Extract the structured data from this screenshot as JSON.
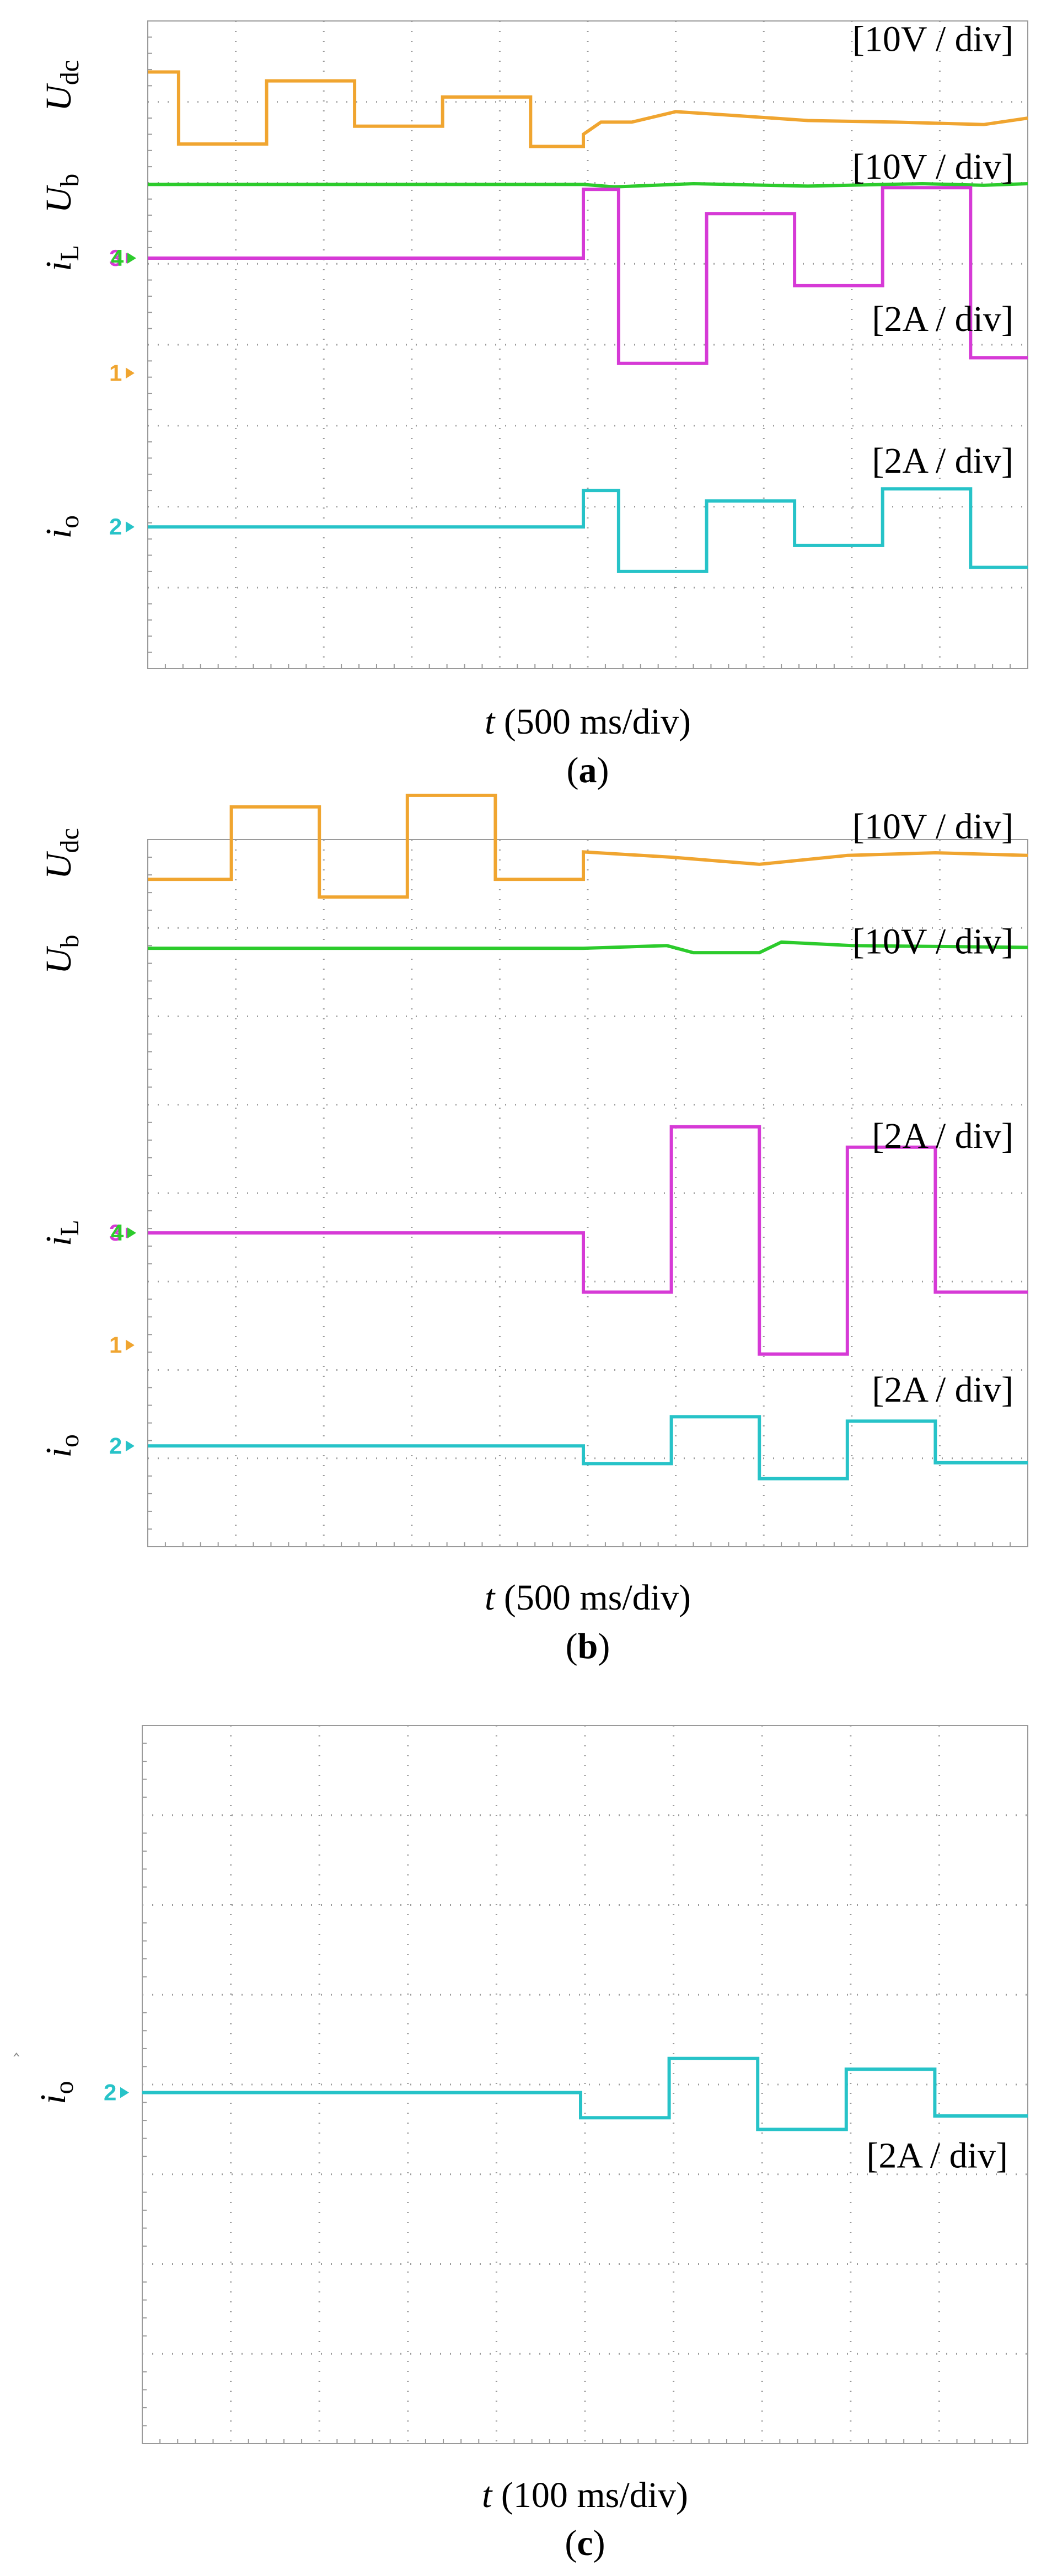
{
  "colors": {
    "u_dc": "#f0a530",
    "u_b": "#2ccb2c",
    "i_L": "#d63ad6",
    "i_o": "#27c3c8",
    "marker_4": "#2ccb2c",
    "marker_1": "#f0a530",
    "marker_3": "#d63ad6",
    "marker_2": "#27c3c8",
    "grid": "#9a9a9a",
    "text": "#000000"
  },
  "chart_data": [
    {
      "type": "line",
      "panel_label": "(a)",
      "caption_letter": "a",
      "x_axis_label": "t (500 ms/div)",
      "x_label_var": "t",
      "x_label_unit": "(500 ms/div)",
      "x_range": [
        0,
        10
      ],
      "y_range": [
        0,
        8
      ],
      "grid": true,
      "channel_markers": [
        {
          "label": "3",
          "color_key": "marker_3",
          "y": 5.07,
          "x_offset": 0
        },
        {
          "label": "4",
          "color_key": "marker_4",
          "y": 5.07,
          "x_offset": 3
        },
        {
          "label": "1",
          "color_key": "marker_1",
          "y": 3.65,
          "x_offset": 0
        },
        {
          "label": "2",
          "color_key": "marker_2",
          "y": 1.75,
          "x_offset": 0
        }
      ],
      "scale_labels": [
        {
          "text": "[10V / div]",
          "y": 7.78
        },
        {
          "text": "[10V / div]",
          "y": 6.2
        },
        {
          "text": "[2A / div]",
          "y": 4.32
        },
        {
          "text": "[2A / div]",
          "y": 2.57
        }
      ],
      "series": [
        {
          "name": "U_dc",
          "sym": "U",
          "sub": "dc",
          "label_y": 7.2,
          "color_key": "u_dc",
          "points": [
            [
              0,
              7.37
            ],
            [
              0.35,
              7.37
            ],
            [
              0.35,
              6.48
            ],
            [
              1.35,
              6.48
            ],
            [
              1.35,
              7.26
            ],
            [
              2.35,
              7.26
            ],
            [
              2.35,
              6.7
            ],
            [
              3.35,
              6.7
            ],
            [
              3.35,
              7.06
            ],
            [
              4.35,
              7.06
            ],
            [
              4.35,
              6.45
            ],
            [
              4.95,
              6.45
            ],
            [
              4.95,
              6.6
            ],
            [
              5.15,
              6.75
            ],
            [
              5.5,
              6.75
            ],
            [
              6.0,
              6.88
            ],
            [
              6.7,
              6.83
            ],
            [
              7.5,
              6.77
            ],
            [
              8.5,
              6.75
            ],
            [
              9.5,
              6.72
            ],
            [
              10,
              6.8
            ]
          ]
        },
        {
          "name": "U_b",
          "sym": "U",
          "sub": "b",
          "label_y": 5.87,
          "color_key": "u_b",
          "points": [
            [
              0,
              5.98
            ],
            [
              4.95,
              5.98
            ],
            [
              5.3,
              5.95
            ],
            [
              6.2,
              5.99
            ],
            [
              7.5,
              5.96
            ],
            [
              8.8,
              5.99
            ],
            [
              9.5,
              5.97
            ],
            [
              10,
              5.99
            ]
          ]
        },
        {
          "name": "i_L",
          "sym": "i",
          "sub": "L",
          "label_y": 5.07,
          "color_key": "i_L",
          "points": [
            [
              0,
              5.07
            ],
            [
              4.95,
              5.07
            ],
            [
              4.95,
              5.92
            ],
            [
              5.35,
              5.92
            ],
            [
              5.35,
              3.77
            ],
            [
              6.35,
              3.77
            ],
            [
              6.35,
              5.62
            ],
            [
              7.35,
              5.62
            ],
            [
              7.35,
              4.73
            ],
            [
              8.35,
              4.73
            ],
            [
              8.35,
              5.94
            ],
            [
              9.35,
              5.94
            ],
            [
              9.35,
              3.84
            ],
            [
              10,
              3.84
            ]
          ]
        },
        {
          "name": "i_o",
          "sym": "i",
          "sub": "o",
          "label_y": 1.75,
          "color_key": "i_o",
          "points": [
            [
              0,
              1.75
            ],
            [
              4.95,
              1.75
            ],
            [
              4.95,
              2.2
            ],
            [
              5.35,
              2.2
            ],
            [
              5.35,
              1.2
            ],
            [
              6.35,
              1.2
            ],
            [
              6.35,
              2.07
            ],
            [
              7.35,
              2.07
            ],
            [
              7.35,
              1.52
            ],
            [
              8.35,
              1.52
            ],
            [
              8.35,
              2.22
            ],
            [
              9.35,
              2.22
            ],
            [
              9.35,
              1.25
            ],
            [
              10,
              1.25
            ]
          ]
        }
      ]
    },
    {
      "type": "line",
      "panel_label": "(b)",
      "caption_letter": "b",
      "x_axis_label": "t (500 ms/div)",
      "x_label_var": "t",
      "x_label_unit": "(500 ms/div)",
      "x_range": [
        0,
        10
      ],
      "y_range": [
        0,
        8
      ],
      "grid": true,
      "channel_markers": [
        {
          "label": "3",
          "color_key": "marker_3",
          "y": 3.55,
          "x_offset": 0
        },
        {
          "label": "4",
          "color_key": "marker_4",
          "y": 3.55,
          "x_offset": 3
        },
        {
          "label": "1",
          "color_key": "marker_1",
          "y": 2.28,
          "x_offset": 0
        },
        {
          "label": "2",
          "color_key": "marker_2",
          "y": 1.14,
          "x_offset": 0
        }
      ],
      "scale_labels": [
        {
          "text": "[10V / div]",
          "y": 8.15
        },
        {
          "text": "[10V / div]",
          "y": 6.85
        },
        {
          "text": "[2A / div]",
          "y": 4.65
        },
        {
          "text": "[2A / div]",
          "y": 1.78
        }
      ],
      "series": [
        {
          "name": "U_dc",
          "sym": "U",
          "sub": "dc",
          "label_y": 7.84,
          "color_key": "u_dc",
          "points": [
            [
              0,
              7.55
            ],
            [
              0.95,
              7.55
            ],
            [
              0.95,
              8.37
            ],
            [
              1.95,
              8.37
            ],
            [
              1.95,
              7.35
            ],
            [
              2.95,
              7.35
            ],
            [
              2.95,
              8.5
            ],
            [
              3.95,
              8.5
            ],
            [
              3.95,
              7.55
            ],
            [
              4.95,
              7.55
            ],
            [
              4.95,
              7.86
            ],
            [
              5.95,
              7.8
            ],
            [
              6.95,
              7.72
            ],
            [
              7.95,
              7.82
            ],
            [
              8.95,
              7.85
            ],
            [
              10,
              7.82
            ]
          ]
        },
        {
          "name": "U_b",
          "sym": "U",
          "sub": "b",
          "label_y": 6.7,
          "color_key": "u_b",
          "points": [
            [
              0,
              6.77
            ],
            [
              4.95,
              6.77
            ],
            [
              5.9,
              6.8
            ],
            [
              6.2,
              6.72
            ],
            [
              6.95,
              6.72
            ],
            [
              7.2,
              6.84
            ],
            [
              8.0,
              6.8
            ],
            [
              10,
              6.78
            ]
          ]
        },
        {
          "name": "i_L",
          "sym": "i",
          "sub": "L",
          "label_y": 3.55,
          "color_key": "i_L",
          "points": [
            [
              0,
              3.55
            ],
            [
              4.95,
              3.55
            ],
            [
              4.95,
              2.88
            ],
            [
              5.95,
              2.88
            ],
            [
              5.95,
              4.75
            ],
            [
              6.95,
              4.75
            ],
            [
              6.95,
              2.18
            ],
            [
              7.95,
              2.18
            ],
            [
              7.95,
              4.52
            ],
            [
              8.95,
              4.52
            ],
            [
              8.95,
              2.88
            ],
            [
              10,
              2.88
            ]
          ]
        },
        {
          "name": "i_o",
          "sym": "i",
          "sub": "o",
          "label_y": 1.14,
          "color_key": "i_o",
          "points": [
            [
              0,
              1.14
            ],
            [
              4.95,
              1.14
            ],
            [
              4.95,
              0.94
            ],
            [
              5.95,
              0.94
            ],
            [
              5.95,
              1.47
            ],
            [
              6.95,
              1.47
            ],
            [
              6.95,
              0.77
            ],
            [
              7.95,
              0.77
            ],
            [
              7.95,
              1.42
            ],
            [
              8.95,
              1.42
            ],
            [
              8.95,
              0.95
            ],
            [
              10,
              0.95
            ]
          ]
        }
      ]
    },
    {
      "type": "line",
      "panel_label": "(c)",
      "caption_letter": "c",
      "x_axis_label": "t (100 ms/div)",
      "x_label_var": "t",
      "x_label_unit": "(100 ms/div)",
      "x_range": [
        0,
        10
      ],
      "y_range": [
        0,
        8
      ],
      "grid": true,
      "channel_markers": [
        {
          "label": "2",
          "color_key": "marker_2",
          "y": 3.91,
          "x_offset": 0
        }
      ],
      "scale_labels": [
        {
          "text": "[2A / div]",
          "y": 3.21
        }
      ],
      "series": [
        {
          "name": "i_o",
          "sym": "i",
          "sub": "o",
          "label_y": 3.91,
          "color_key": "i_o",
          "points": [
            [
              0,
              3.91
            ],
            [
              4.95,
              3.91
            ],
            [
              4.95,
              3.63
            ],
            [
              5.95,
              3.63
            ],
            [
              5.95,
              4.29
            ],
            [
              6.95,
              4.29
            ],
            [
              6.95,
              3.5
            ],
            [
              7.95,
              3.5
            ],
            [
              7.95,
              4.17
            ],
            [
              8.95,
              4.17
            ],
            [
              8.95,
              3.65
            ],
            [
              10,
              3.65
            ]
          ]
        }
      ]
    }
  ]
}
